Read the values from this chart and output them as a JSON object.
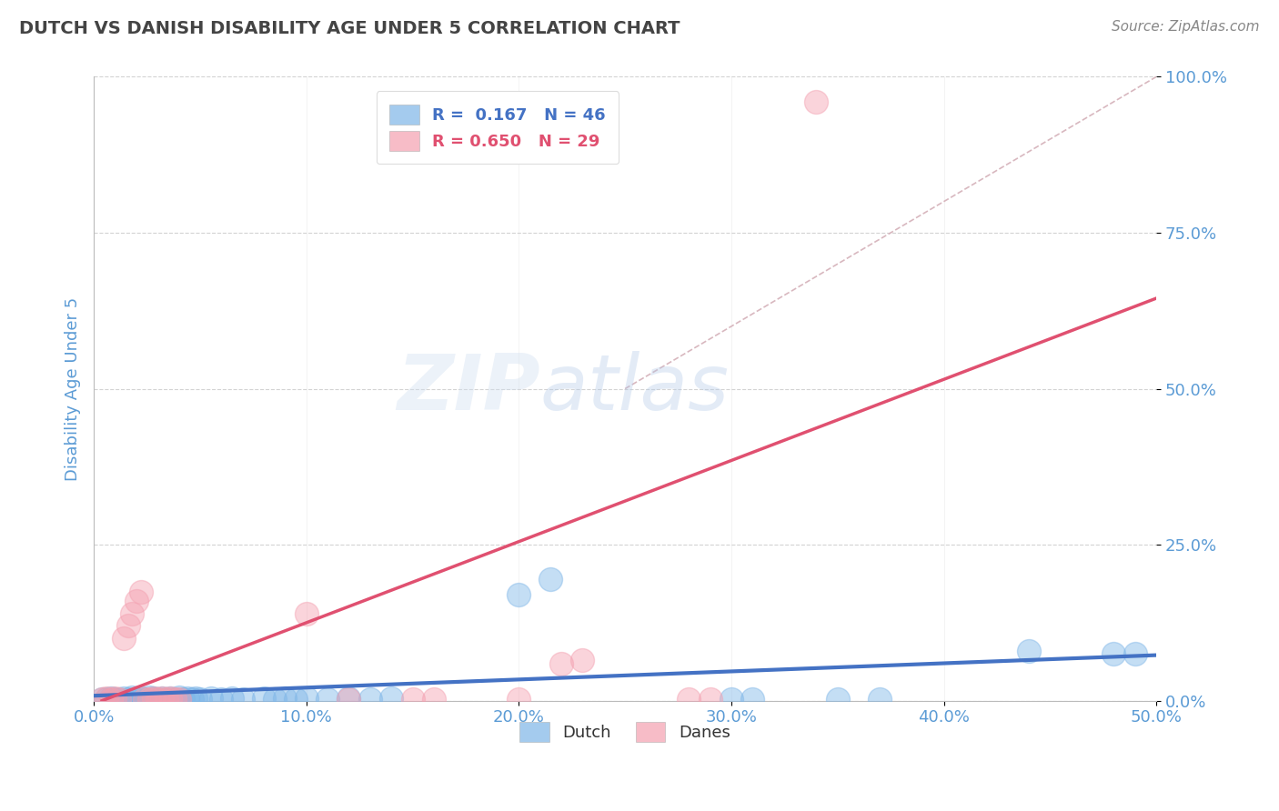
{
  "title": "DUTCH VS DANISH DISABILITY AGE UNDER 5 CORRELATION CHART",
  "source_text": "Source: ZipAtlas.com",
  "xlabel": "",
  "ylabel": "Disability Age Under 5",
  "xlim": [
    0.0,
    0.5
  ],
  "ylim": [
    0.0,
    1.0
  ],
  "xticks": [
    0.0,
    0.1,
    0.2,
    0.3,
    0.4,
    0.5
  ],
  "xticklabels": [
    "0.0%",
    "10.0%",
    "20.0%",
    "30.0%",
    "40.0%",
    "50.0%"
  ],
  "yticks": [
    0.0,
    0.25,
    0.5,
    0.75,
    1.0
  ],
  "yticklabels": [
    "0.0%",
    "25.0%",
    "50.0%",
    "75.0%",
    "100.0%"
  ],
  "dutch_color": "#7eb6e8",
  "danes_color": "#f4a0b0",
  "dutch_R": 0.167,
  "dutch_N": 46,
  "danes_R": 0.65,
  "danes_N": 29,
  "dutch_scatter": [
    [
      0.004,
      0.003
    ],
    [
      0.006,
      0.002
    ],
    [
      0.008,
      0.004
    ],
    [
      0.01,
      0.002
    ],
    [
      0.012,
      0.003
    ],
    [
      0.014,
      0.004
    ],
    [
      0.016,
      0.003
    ],
    [
      0.018,
      0.005
    ],
    [
      0.02,
      0.003
    ],
    [
      0.022,
      0.004
    ],
    [
      0.024,
      0.003
    ],
    [
      0.026,
      0.005
    ],
    [
      0.028,
      0.004
    ],
    [
      0.03,
      0.003
    ],
    [
      0.032,
      0.004
    ],
    [
      0.034,
      0.003
    ],
    [
      0.036,
      0.004
    ],
    [
      0.038,
      0.003
    ],
    [
      0.04,
      0.005
    ],
    [
      0.042,
      0.003
    ],
    [
      0.044,
      0.004
    ],
    [
      0.046,
      0.003
    ],
    [
      0.048,
      0.004
    ],
    [
      0.05,
      0.003
    ],
    [
      0.055,
      0.004
    ],
    [
      0.06,
      0.003
    ],
    [
      0.065,
      0.004
    ],
    [
      0.07,
      0.003
    ],
    [
      0.08,
      0.004
    ],
    [
      0.085,
      0.003
    ],
    [
      0.09,
      0.004
    ],
    [
      0.095,
      0.003
    ],
    [
      0.1,
      0.004
    ],
    [
      0.11,
      0.003
    ],
    [
      0.12,
      0.004
    ],
    [
      0.13,
      0.003
    ],
    [
      0.14,
      0.004
    ],
    [
      0.2,
      0.17
    ],
    [
      0.215,
      0.195
    ],
    [
      0.3,
      0.003
    ],
    [
      0.31,
      0.003
    ],
    [
      0.35,
      0.003
    ],
    [
      0.37,
      0.003
    ],
    [
      0.44,
      0.08
    ],
    [
      0.48,
      0.075
    ],
    [
      0.49,
      0.075
    ]
  ],
  "danes_scatter": [
    [
      0.004,
      0.003
    ],
    [
      0.006,
      0.004
    ],
    [
      0.008,
      0.003
    ],
    [
      0.01,
      0.004
    ],
    [
      0.012,
      0.003
    ],
    [
      0.014,
      0.1
    ],
    [
      0.016,
      0.12
    ],
    [
      0.018,
      0.14
    ],
    [
      0.02,
      0.16
    ],
    [
      0.022,
      0.175
    ],
    [
      0.024,
      0.003
    ],
    [
      0.026,
      0.003
    ],
    [
      0.028,
      0.004
    ],
    [
      0.03,
      0.003
    ],
    [
      0.032,
      0.004
    ],
    [
      0.034,
      0.003
    ],
    [
      0.036,
      0.004
    ],
    [
      0.038,
      0.003
    ],
    [
      0.04,
      0.003
    ],
    [
      0.1,
      0.14
    ],
    [
      0.12,
      0.003
    ],
    [
      0.2,
      0.003
    ],
    [
      0.22,
      0.06
    ],
    [
      0.23,
      0.065
    ],
    [
      0.28,
      0.003
    ],
    [
      0.29,
      0.003
    ],
    [
      0.34,
      0.96
    ],
    [
      0.15,
      0.003
    ],
    [
      0.16,
      0.003
    ]
  ],
  "background_color": "#ffffff",
  "grid_color": "#c8c8c8",
  "title_color": "#444444",
  "axis_label_color": "#5b9bd5",
  "tick_label_color": "#5b9bd5",
  "ref_line_color": "#d4b0b8",
  "dutch_line_color": "#4472c4",
  "danes_line_color": "#e05070",
  "dutch_line_slope": 0.13,
  "dutch_line_intercept": 0.008,
  "danes_line_slope": 1.3,
  "danes_line_intercept": -0.005
}
